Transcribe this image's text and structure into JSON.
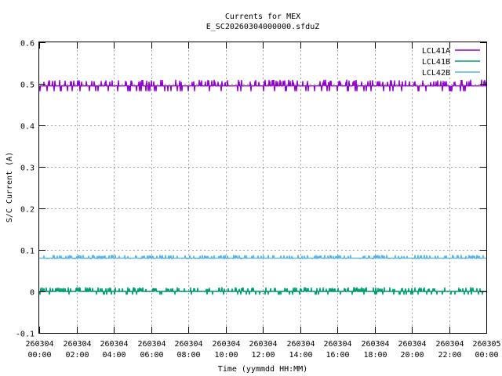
{
  "chart_data": {
    "type": "line",
    "title": "Currents for MEX",
    "subtitle": "E_SC20260304000000.sfduZ",
    "xlabel": "Time (yymmdd HH:MM)",
    "ylabel": "S/C Current (A)",
    "ylim": [
      -0.1,
      0.6
    ],
    "yticks": [
      "-0.1",
      "0",
      "0.1",
      "0.2",
      "0.3",
      "0.4",
      "0.5",
      "0.6"
    ],
    "xticks": [
      {
        "date": "260304",
        "time": "00:00"
      },
      {
        "date": "260304",
        "time": "02:00"
      },
      {
        "date": "260304",
        "time": "04:00"
      },
      {
        "date": "260304",
        "time": "06:00"
      },
      {
        "date": "260304",
        "time": "08:00"
      },
      {
        "date": "260304",
        "time": "10:00"
      },
      {
        "date": "260304",
        "time": "12:00"
      },
      {
        "date": "260304",
        "time": "14:00"
      },
      {
        "date": "260304",
        "time": "16:00"
      },
      {
        "date": "260304",
        "time": "18:00"
      },
      {
        "date": "260304",
        "time": "20:00"
      },
      {
        "date": "260304",
        "time": "22:00"
      },
      {
        "date": "260305",
        "time": "00:00"
      }
    ],
    "xrange_hours": [
      0,
      24
    ],
    "grid": true,
    "legend_position": "top-right",
    "series": [
      {
        "name": "LCL41A",
        "color": "#9400d3",
        "base": 0.495,
        "high": 0.51,
        "low": 0.482
      },
      {
        "name": "LCL41B",
        "color": "#009e73",
        "base": 0.0,
        "high": 0.01,
        "low": -0.008
      },
      {
        "name": "LCL42B",
        "color": "#56b4e9",
        "base": 0.08,
        "high": 0.088,
        "low": 0.079
      }
    ]
  }
}
